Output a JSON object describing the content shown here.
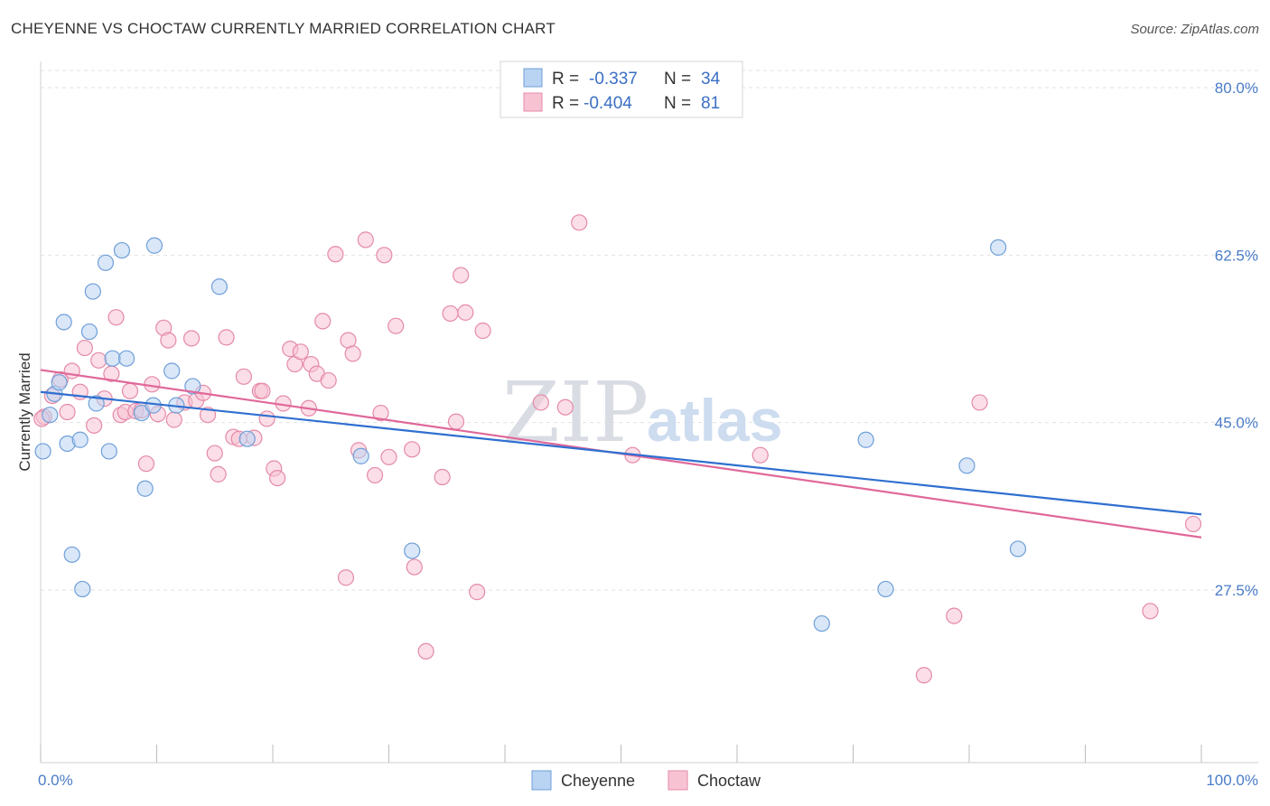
{
  "title": "CHEYENNE VS CHOCTAW CURRENTLY MARRIED CORRELATION CHART",
  "source": "Source: ZipAtlas.com",
  "watermark": {
    "part1": "ZIP",
    "part2": "atlas"
  },
  "colors": {
    "cheyenne_fill": "#b9d3f2",
    "cheyenne_stroke": "#6f9fd8",
    "cheyenne_line": "#2f6fd0",
    "choctaw_fill": "#f7c3d3",
    "choctaw_stroke": "#e58aa8",
    "choctaw_line": "#e0689a",
    "tick_label": "#4a7cc7"
  },
  "legend": {
    "rows": [
      {
        "r_label": "R =",
        "r_value": "-0.337",
        "n_label": "N =",
        "n_value": "34"
      },
      {
        "r_label": "R =",
        "r_value": "-0.404",
        "n_label": "N =",
        "n_value": "81"
      }
    ]
  },
  "chart_data": {
    "type": "scatter",
    "title": "CHEYENNE VS CHOCTAW CURRENTLY MARRIED CORRELATION CHART",
    "xlabel": "",
    "ylabel": "Currently Married",
    "xlim": [
      0,
      100
    ],
    "ylim": [
      12,
      83
    ],
    "x_tick_labels": [
      "0.0%",
      "100.0%"
    ],
    "y_ticks": [
      27.5,
      45.0,
      62.5,
      80.0
    ],
    "y_tick_labels": [
      "27.5%",
      "45.0%",
      "62.5%",
      "80.0%"
    ],
    "grid": "horizontal dashed",
    "legend_placement": "top-center",
    "series": [
      {
        "name": "Cheyenne",
        "r": -0.337,
        "n": 34,
        "trend": {
          "x": [
            0,
            100
          ],
          "y": [
            48.2,
            35.4
          ]
        },
        "points": [
          {
            "x": 0.2,
            "y": 42.0
          },
          {
            "x": 0.8,
            "y": 45.8
          },
          {
            "x": 1.2,
            "y": 48.0
          },
          {
            "x": 1.6,
            "y": 49.2
          },
          {
            "x": 2.0,
            "y": 55.5
          },
          {
            "x": 2.3,
            "y": 42.8
          },
          {
            "x": 2.7,
            "y": 31.2
          },
          {
            "x": 3.4,
            "y": 43.2
          },
          {
            "x": 3.6,
            "y": 27.6
          },
          {
            "x": 4.2,
            "y": 54.5
          },
          {
            "x": 4.5,
            "y": 58.7
          },
          {
            "x": 4.8,
            "y": 47.0
          },
          {
            "x": 5.6,
            "y": 61.7
          },
          {
            "x": 5.9,
            "y": 42.0
          },
          {
            "x": 6.2,
            "y": 51.7
          },
          {
            "x": 7.0,
            "y": 63.0
          },
          {
            "x": 7.4,
            "y": 51.7
          },
          {
            "x": 8.7,
            "y": 46.0
          },
          {
            "x": 9.0,
            "y": 38.1
          },
          {
            "x": 9.8,
            "y": 63.5
          },
          {
            "x": 9.7,
            "y": 46.8
          },
          {
            "x": 11.3,
            "y": 50.4
          },
          {
            "x": 11.7,
            "y": 46.8
          },
          {
            "x": 13.1,
            "y": 48.8
          },
          {
            "x": 15.4,
            "y": 59.2
          },
          {
            "x": 17.8,
            "y": 43.3
          },
          {
            "x": 27.6,
            "y": 41.5
          },
          {
            "x": 32.0,
            "y": 31.6
          },
          {
            "x": 67.3,
            "y": 24.0
          },
          {
            "x": 71.1,
            "y": 43.2
          },
          {
            "x": 72.8,
            "y": 27.6
          },
          {
            "x": 79.8,
            "y": 40.5
          },
          {
            "x": 82.5,
            "y": 63.3
          },
          {
            "x": 84.2,
            "y": 31.8
          }
        ]
      },
      {
        "name": "Choctaw",
        "r": -0.404,
        "n": 81,
        "trend": {
          "x": [
            0,
            100
          ],
          "y": [
            50.5,
            33.0
          ]
        },
        "points": [
          {
            "x": 0.3,
            "y": 45.6
          },
          {
            "x": 1.0,
            "y": 47.8
          },
          {
            "x": 1.7,
            "y": 49.5
          },
          {
            "x": 2.3,
            "y": 46.1
          },
          {
            "x": 2.7,
            "y": 50.4
          },
          {
            "x": 3.4,
            "y": 48.2
          },
          {
            "x": 3.8,
            "y": 52.8
          },
          {
            "x": 4.6,
            "y": 44.7
          },
          {
            "x": 5.0,
            "y": 51.5
          },
          {
            "x": 5.5,
            "y": 47.5
          },
          {
            "x": 6.1,
            "y": 50.1
          },
          {
            "x": 6.5,
            "y": 56.0
          },
          {
            "x": 6.9,
            "y": 45.8
          },
          {
            "x": 7.3,
            "y": 46.1
          },
          {
            "x": 7.7,
            "y": 48.3
          },
          {
            "x": 8.2,
            "y": 46.2
          },
          {
            "x": 8.7,
            "y": 46.3
          },
          {
            "x": 9.1,
            "y": 40.7
          },
          {
            "x": 9.6,
            "y": 49.0
          },
          {
            "x": 10.1,
            "y": 45.9
          },
          {
            "x": 10.6,
            "y": 54.9
          },
          {
            "x": 11.0,
            "y": 53.6
          },
          {
            "x": 11.5,
            "y": 45.3
          },
          {
            "x": 12.4,
            "y": 47.1
          },
          {
            "x": 13.0,
            "y": 53.8
          },
          {
            "x": 13.4,
            "y": 47.3
          },
          {
            "x": 14.0,
            "y": 48.1
          },
          {
            "x": 14.4,
            "y": 45.8
          },
          {
            "x": 15.0,
            "y": 41.8
          },
          {
            "x": 15.3,
            "y": 39.6
          },
          {
            "x": 16.0,
            "y": 53.9
          },
          {
            "x": 16.6,
            "y": 43.5
          },
          {
            "x": 17.1,
            "y": 43.3
          },
          {
            "x": 17.5,
            "y": 49.8
          },
          {
            "x": 18.4,
            "y": 43.4
          },
          {
            "x": 18.9,
            "y": 48.3
          },
          {
            "x": 19.1,
            "y": 48.3
          },
          {
            "x": 19.5,
            "y": 45.4
          },
          {
            "x": 20.1,
            "y": 40.2
          },
          {
            "x": 20.4,
            "y": 39.2
          },
          {
            "x": 20.9,
            "y": 47.0
          },
          {
            "x": 21.5,
            "y": 52.7
          },
          {
            "x": 21.9,
            "y": 51.1
          },
          {
            "x": 22.4,
            "y": 52.4
          },
          {
            "x": 23.1,
            "y": 46.5
          },
          {
            "x": 23.3,
            "y": 51.1
          },
          {
            "x": 23.8,
            "y": 50.1
          },
          {
            "x": 24.3,
            "y": 55.6
          },
          {
            "x": 24.8,
            "y": 49.4
          },
          {
            "x": 25.4,
            "y": 62.6
          },
          {
            "x": 26.3,
            "y": 28.8
          },
          {
            "x": 26.5,
            "y": 53.6
          },
          {
            "x": 26.9,
            "y": 52.2
          },
          {
            "x": 27.4,
            "y": 42.1
          },
          {
            "x": 28.0,
            "y": 64.1
          },
          {
            "x": 28.8,
            "y": 39.5
          },
          {
            "x": 29.3,
            "y": 46.0
          },
          {
            "x": 29.6,
            "y": 62.5
          },
          {
            "x": 30.0,
            "y": 41.4
          },
          {
            "x": 30.6,
            "y": 55.1
          },
          {
            "x": 32.0,
            "y": 42.2
          },
          {
            "x": 32.2,
            "y": 29.9
          },
          {
            "x": 33.2,
            "y": 21.1
          },
          {
            "x": 34.6,
            "y": 39.3
          },
          {
            "x": 35.3,
            "y": 56.4
          },
          {
            "x": 35.8,
            "y": 45.1
          },
          {
            "x": 36.2,
            "y": 60.4
          },
          {
            "x": 36.6,
            "y": 56.5
          },
          {
            "x": 37.6,
            "y": 27.3
          },
          {
            "x": 38.1,
            "y": 54.6
          },
          {
            "x": 43.1,
            "y": 47.1
          },
          {
            "x": 45.2,
            "y": 46.6
          },
          {
            "x": 46.4,
            "y": 65.9
          },
          {
            "x": 51.0,
            "y": 41.6
          },
          {
            "x": 62.0,
            "y": 41.6
          },
          {
            "x": 76.1,
            "y": 18.6
          },
          {
            "x": 78.7,
            "y": 24.8
          },
          {
            "x": 80.9,
            "y": 47.1
          },
          {
            "x": 95.6,
            "y": 25.3
          },
          {
            "x": 99.3,
            "y": 34.4
          },
          {
            "x": 0.1,
            "y": 45.4
          }
        ]
      }
    ]
  }
}
